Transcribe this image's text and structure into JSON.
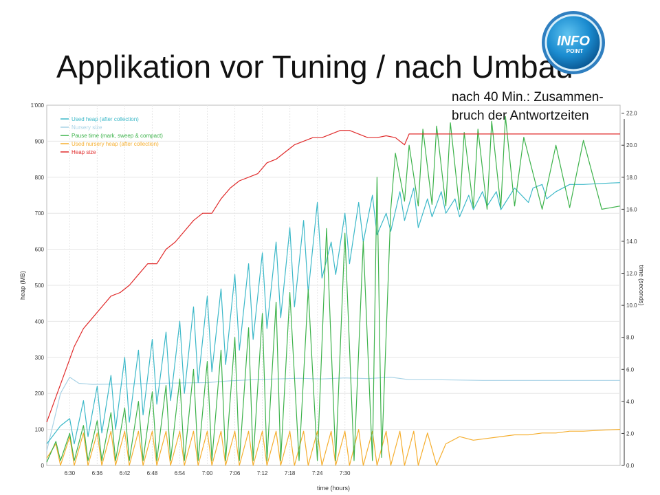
{
  "slide": {
    "title": "Applikation vor Tuning / nach Umbau",
    "annotation_line1": "nach 40 Min.: Zusammen-",
    "annotation_line2": "bruch der Antwortzeiten",
    "logo_text_top": "INFO",
    "logo_text_bottom": "POINT"
  },
  "chart_data": {
    "type": "line",
    "xlabel": "time (hours)",
    "ylabel": "heap (MB)",
    "y2label": "time (seconds)",
    "x_ticks": [
      "6:30",
      "6:36",
      "6:42",
      "6:48",
      "6:54",
      "7:00",
      "7:06",
      "7:12",
      "7:18",
      "7:24",
      "7:30"
    ],
    "x_range_min": [
      25,
      150
    ],
    "y_ticks": [
      "0",
      "100",
      "200",
      "300",
      "400",
      "500",
      "600",
      "700",
      "800",
      "900",
      "1'000"
    ],
    "ylim": [
      0,
      1000
    ],
    "y2_ticks": [
      "0.0",
      "2.0",
      "4.0",
      "6.0",
      "8.0",
      "10.0",
      "12.0",
      "14.0",
      "16.0",
      "18.0",
      "20.0",
      "22.0"
    ],
    "y2lim": [
      0,
      22.5
    ],
    "legend_position": "top-left",
    "grid": true,
    "colors": {
      "used_heap": "#3bb8c8",
      "nursery": "#a9d3e6",
      "pause": "#3cb24a",
      "used_nursery": "#f5ae2e",
      "heap_size": "#e02a2a"
    },
    "series": [
      {
        "name": "Used heap (after collection)",
        "key": "used_heap",
        "x": [
          25,
          28,
          30,
          31,
          33,
          34,
          36,
          37,
          39,
          40,
          42,
          43,
          45,
          46,
          48,
          49,
          51,
          52,
          54,
          55,
          57,
          58,
          60,
          61,
          63,
          64,
          66,
          67,
          69,
          70,
          72,
          73,
          75,
          76,
          78,
          79,
          81,
          82,
          84,
          85,
          87,
          88,
          90,
          91,
          93,
          94,
          96,
          97,
          99,
          100,
          102,
          103,
          105,
          106,
          108,
          109,
          111,
          112,
          114,
          115,
          117,
          118,
          120,
          121,
          123,
          124,
          127,
          130,
          131,
          133,
          134,
          136,
          139,
          142,
          145,
          148,
          150
        ],
        "y": [
          60,
          110,
          130,
          60,
          180,
          80,
          220,
          90,
          250,
          100,
          300,
          120,
          320,
          140,
          350,
          170,
          370,
          180,
          400,
          200,
          440,
          230,
          470,
          260,
          490,
          280,
          530,
          320,
          560,
          350,
          590,
          380,
          620,
          410,
          660,
          440,
          680,
          480,
          730,
          520,
          620,
          530,
          700,
          560,
          730,
          620,
          750,
          640,
          700,
          650,
          760,
          680,
          770,
          660,
          740,
          690,
          760,
          700,
          740,
          690,
          750,
          710,
          760,
          720,
          760,
          710,
          770,
          730,
          770,
          780,
          740,
          760,
          780,
          780,
          782,
          784,
          785
        ]
      },
      {
        "name": "Nursery size",
        "key": "nursery",
        "x": [
          25,
          28,
          30,
          32,
          35,
          40,
          45,
          50,
          55,
          60,
          65,
          70,
          75,
          80,
          85,
          90,
          95,
          100,
          104,
          110,
          115,
          120,
          125,
          130,
          135,
          140,
          145,
          150
        ],
        "y": [
          40,
          200,
          245,
          228,
          225,
          226,
          227,
          228,
          229,
          230,
          235,
          238,
          240,
          242,
          240,
          243,
          241,
          245,
          238,
          238,
          237,
          236,
          236,
          236,
          236,
          236,
          236,
          236
        ]
      },
      {
        "name": "Pause time (mark, sweep & compact)",
        "key": "pause",
        "x": [
          25,
          27,
          28,
          30,
          31,
          33,
          34,
          36,
          37,
          39,
          40,
          42,
          43,
          45,
          46,
          48,
          49,
          51,
          52,
          54,
          55,
          57,
          58,
          60,
          61,
          63,
          64,
          66,
          67,
          69,
          70,
          72,
          73,
          75,
          76,
          78,
          80,
          82,
          84,
          86,
          88,
          90,
          92,
          94,
          96,
          97,
          98,
          100,
          101,
          103,
          104,
          106,
          107,
          109,
          110,
          112,
          113,
          115,
          116,
          118,
          119,
          121,
          122,
          124,
          125,
          127,
          129,
          133,
          136,
          139,
          142,
          146,
          150
        ],
        "y": [
          0.2,
          1.5,
          0.3,
          2.0,
          0.3,
          2.5,
          0.3,
          2.8,
          0.3,
          3.3,
          0.3,
          3.6,
          0.3,
          4.0,
          0.3,
          4.6,
          0.3,
          5.0,
          0.3,
          5.4,
          0.3,
          6.0,
          0.3,
          6.5,
          0.3,
          7.2,
          0.3,
          8.0,
          0.3,
          8.6,
          0.3,
          9.5,
          0.3,
          10.2,
          0.3,
          10.8,
          0.3,
          11.0,
          0.3,
          14.8,
          0.3,
          14.5,
          0.3,
          14.0,
          0.3,
          18.0,
          0.5,
          16.0,
          19.5,
          16.5,
          20.0,
          16.2,
          21.0,
          16.3,
          21.2,
          16.2,
          21.4,
          16.0,
          20.8,
          16.1,
          21.0,
          16.0,
          21.5,
          16.1,
          21.8,
          16.2,
          20.5,
          16.0,
          20.0,
          16.1,
          20.3,
          16.0,
          16.2
        ]
      },
      {
        "name": "Used nursery heap (after collection)",
        "key": "used_nursery",
        "x": [
          25,
          27,
          28,
          30,
          31,
          33,
          34,
          36,
          37,
          39,
          40,
          42,
          43,
          45,
          46,
          48,
          49,
          51,
          52,
          54,
          55,
          57,
          58,
          60,
          61,
          63,
          64,
          66,
          67,
          69,
          70,
          72,
          73,
          75,
          76,
          78,
          79,
          81,
          82,
          84,
          85,
          87,
          88,
          90,
          91,
          93,
          94,
          96,
          97,
          99,
          100,
          102,
          103,
          105,
          106,
          108,
          110,
          112,
          115,
          118,
          121,
          124,
          127,
          130,
          133,
          136,
          139,
          142,
          146,
          150
        ],
        "y": [
          20,
          60,
          0,
          80,
          0,
          90,
          0,
          90,
          0,
          95,
          0,
          95,
          0,
          95,
          0,
          95,
          0,
          95,
          0,
          95,
          0,
          95,
          0,
          95,
          0,
          95,
          0,
          95,
          0,
          95,
          0,
          95,
          0,
          95,
          0,
          95,
          0,
          95,
          0,
          95,
          0,
          95,
          0,
          95,
          0,
          100,
          0,
          95,
          0,
          95,
          0,
          95,
          0,
          95,
          0,
          90,
          0,
          60,
          80,
          70,
          75,
          80,
          85,
          85,
          90,
          90,
          95,
          95,
          98,
          100
        ]
      },
      {
        "name": "Heap size",
        "key": "heap_size",
        "x": [
          25,
          27,
          29,
          31,
          33,
          35,
          37,
          39,
          41,
          43,
          45,
          47,
          49,
          51,
          53,
          55,
          57,
          59,
          61,
          63,
          65,
          67,
          69,
          71,
          73,
          75,
          77,
          79,
          81,
          83,
          85,
          87,
          89,
          91,
          93,
          95,
          97,
          99,
          101,
          103,
          104,
          110,
          120,
          130,
          140,
          150
        ],
        "y": [
          120,
          190,
          260,
          330,
          380,
          410,
          440,
          470,
          480,
          500,
          530,
          560,
          560,
          600,
          620,
          650,
          680,
          700,
          700,
          740,
          770,
          790,
          800,
          810,
          840,
          850,
          870,
          890,
          900,
          910,
          910,
          920,
          930,
          930,
          920,
          910,
          910,
          915,
          910,
          890,
          920,
          920,
          920,
          920,
          920,
          920
        ]
      }
    ]
  }
}
